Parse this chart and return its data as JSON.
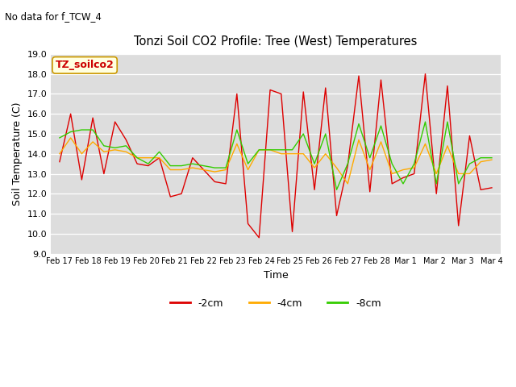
{
  "title": "Tonzi Soil CO2 Profile: Tree (West) Temperatures",
  "subtitle": "No data for f_TCW_4",
  "ylabel": "Soil Temperature (C)",
  "xlabel": "Time",
  "legend_label": "TZ_soilco2",
  "ylim": [
    9.0,
    19.0
  ],
  "yticks": [
    9.0,
    10.0,
    11.0,
    12.0,
    13.0,
    14.0,
    15.0,
    16.0,
    17.0,
    18.0,
    19.0
  ],
  "xtick_labels": [
    "Feb 17",
    "Feb 18",
    "Feb 19",
    "Feb 20",
    "Feb 21",
    "Feb 22",
    "Feb 23",
    "Feb 24",
    "Feb 25",
    "Feb 26",
    "Feb 27",
    "Feb 28",
    "Mar 1",
    "Mar 2",
    "Mar 3",
    "Mar 4"
  ],
  "line_colors": {
    "2cm": "#dd0000",
    "4cm": "#ffaa00",
    "8cm": "#33cc00"
  },
  "background_color": "#ffffff",
  "plot_bg_color": "#dddddd",
  "grid_color": "#ffffff",
  "red_2cm": [
    13.6,
    16.0,
    12.7,
    15.8,
    13.0,
    15.6,
    14.7,
    13.5,
    13.4,
    13.8,
    11.85,
    12.0,
    13.8,
    13.2,
    12.6,
    12.5,
    17.0,
    10.5,
    9.8,
    17.2,
    17.0,
    10.1,
    17.1,
    12.2,
    17.3,
    10.9,
    13.4,
    17.9,
    12.1,
    17.7,
    12.5,
    12.8,
    13.0,
    18.0,
    12.0,
    17.4,
    10.4,
    14.9,
    12.2,
    12.3
  ],
  "orange_4cm": [
    14.0,
    14.8,
    14.0,
    14.6,
    14.1,
    14.2,
    14.1,
    13.8,
    13.8,
    13.8,
    13.2,
    13.2,
    13.3,
    13.2,
    13.1,
    13.2,
    14.5,
    13.2,
    14.2,
    14.2,
    14.0,
    14.0,
    14.0,
    13.3,
    14.0,
    13.3,
    12.5,
    14.7,
    13.2,
    14.6,
    13.0,
    13.2,
    13.3,
    14.5,
    13.0,
    14.4,
    13.0,
    13.0,
    13.6,
    13.7
  ],
  "green_8cm": [
    14.8,
    15.1,
    15.2,
    15.2,
    14.4,
    14.3,
    14.4,
    13.8,
    13.5,
    14.1,
    13.4,
    13.4,
    13.5,
    13.4,
    13.3,
    13.3,
    15.2,
    13.5,
    14.2,
    14.2,
    14.2,
    14.2,
    15.0,
    13.5,
    15.0,
    12.2,
    13.5,
    15.5,
    13.8,
    15.4,
    13.5,
    12.5,
    13.5,
    15.6,
    12.5,
    15.6,
    12.5,
    13.5,
    13.8,
    13.8
  ]
}
